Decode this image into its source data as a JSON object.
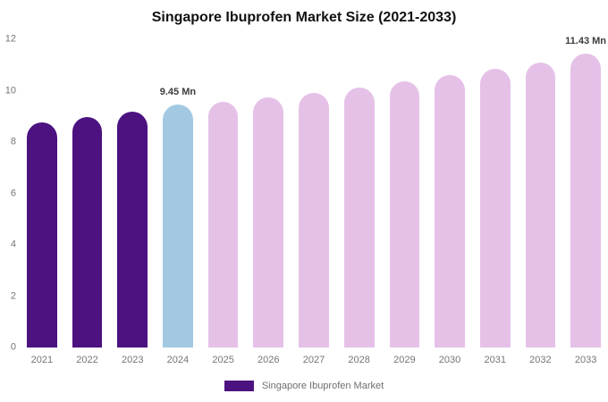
{
  "chart_data": {
    "type": "bar",
    "title": "Singapore Ibuprofen Market Size (2021-2033)",
    "categories": [
      "2021",
      "2022",
      "2023",
      "2024",
      "2025",
      "2026",
      "2027",
      "2028",
      "2029",
      "2030",
      "2031",
      "2032",
      "2033"
    ],
    "values": [
      8.75,
      8.97,
      9.18,
      9.45,
      9.57,
      9.74,
      9.92,
      10.12,
      10.38,
      10.62,
      10.85,
      11.08,
      11.43
    ],
    "unit": "Mn",
    "bar_labels": {
      "2024": "9.45 Mn",
      "2033": "11.43 Mn"
    },
    "bar_colors": [
      "#4b1280",
      "#4b1280",
      "#4b1280",
      "#a3c9e2",
      "#e5c1e8",
      "#e5c1e8",
      "#e5c1e8",
      "#e5c1e8",
      "#e5c1e8",
      "#e5c1e8",
      "#e5c1e8",
      "#e5c1e8",
      "#e5c1e8"
    ],
    "ylim": [
      0,
      12
    ],
    "yticks": [
      0,
      2,
      4,
      6,
      8,
      10,
      12
    ],
    "grid": false,
    "legend_position": "bottom"
  },
  "legend": {
    "label": "Singapore Ibuprofen Market",
    "color": "#4b1280"
  }
}
